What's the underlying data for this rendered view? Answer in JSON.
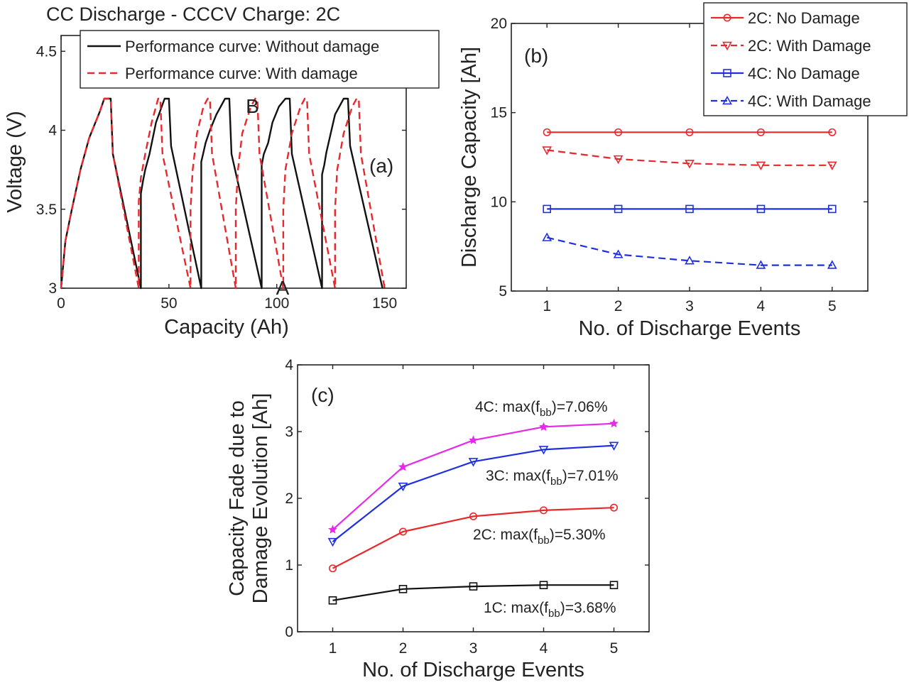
{
  "chart_data": [
    {
      "id": "a",
      "type": "line",
      "title": "CC Discharge - CCCV Charge: 2C",
      "xlabel": "Capacity (Ah)",
      "ylabel": "Voltage (V)",
      "panel_label": "(a)",
      "xlim": [
        0,
        160
      ],
      "ylim": [
        3,
        4.6
      ],
      "xticks": [
        0,
        50,
        100,
        150
      ],
      "yticks": [
        3,
        3.5,
        4,
        4.5
      ],
      "xtick_labels": [
        "0",
        "50",
        "100",
        "150"
      ],
      "ytick_labels": [
        "3",
        "3.5",
        "4",
        "4.5"
      ],
      "legend_position": "top",
      "annotations": [
        {
          "text": "B",
          "x": 83,
          "y": 4.2
        },
        {
          "text": "A",
          "x": 97,
          "y": 3.05
        }
      ],
      "series": [
        {
          "name": "Performance curve: Without damage",
          "color": "#111111",
          "style": "solid",
          "x": [
            0,
            2,
            5,
            9,
            13,
            18,
            20,
            23,
            24,
            37,
            37,
            38,
            39,
            41,
            44,
            48,
            50,
            51,
            65,
            65,
            66,
            67,
            69,
            72,
            76,
            78,
            79,
            93,
            93,
            94,
            96,
            98,
            101,
            104,
            106,
            107,
            121,
            121,
            122,
            123,
            125,
            127,
            131,
            133,
            134,
            149
          ],
          "y": [
            3,
            3.3,
            3.5,
            3.75,
            3.95,
            4.12,
            4.2,
            4.2,
            3.85,
            3,
            3.6,
            3.68,
            3.75,
            3.85,
            4.05,
            4.2,
            4.2,
            3.9,
            3,
            3.8,
            3.86,
            3.92,
            4.0,
            4.1,
            4.2,
            4.2,
            3.85,
            3,
            3.78,
            3.85,
            3.92,
            4.05,
            4.15,
            4.2,
            4.2,
            3.85,
            3,
            3.72,
            3.78,
            3.86,
            3.98,
            4.1,
            4.2,
            4.2,
            3.9,
            3
          ]
        },
        {
          "name": "Performance curve: With damage",
          "color": "#e8282b",
          "style": "dashed",
          "x": [
            0,
            2,
            5,
            9,
            13,
            18,
            20,
            23,
            24,
            36,
            36,
            37,
            39,
            42,
            45,
            46,
            47,
            60,
            60,
            61,
            63,
            66,
            68,
            69,
            70,
            81,
            81,
            82,
            84,
            88,
            90,
            91,
            92,
            103,
            103,
            104,
            107,
            111,
            113,
            114,
            115,
            127,
            127,
            128,
            131,
            135,
            137,
            138,
            139,
            150
          ],
          "y": [
            3,
            3.3,
            3.5,
            3.75,
            3.95,
            4.12,
            4.2,
            4.2,
            3.85,
            3,
            3.55,
            3.7,
            3.85,
            4.05,
            4.2,
            4.2,
            3.85,
            3,
            3.5,
            3.75,
            3.98,
            4.15,
            4.2,
            4.2,
            3.85,
            3,
            3.5,
            3.75,
            3.98,
            4.15,
            4.2,
            4.2,
            3.85,
            3,
            3.5,
            3.75,
            3.98,
            4.15,
            4.2,
            4.2,
            3.85,
            3,
            3.5,
            3.75,
            3.98,
            4.15,
            4.2,
            4.2,
            3.85,
            3
          ]
        }
      ]
    },
    {
      "id": "b",
      "type": "line",
      "title": "",
      "xlabel": "No. of Discharge Events",
      "ylabel": "Discharge Capacity [Ah]",
      "panel_label": "(b)",
      "x": [
        1,
        2,
        3,
        4,
        5
      ],
      "xlim": [
        0.5,
        5.5
      ],
      "ylim": [
        5,
        20
      ],
      "xticks": [
        1,
        2,
        3,
        4,
        5
      ],
      "yticks": [
        5,
        10,
        15,
        20
      ],
      "xtick_labels": [
        "1",
        "2",
        "3",
        "4",
        "5"
      ],
      "ytick_labels": [
        "5",
        "10",
        "15",
        "20"
      ],
      "legend_position": "top-right",
      "series": [
        {
          "name": "2C: No Damage",
          "color": "#e8282b",
          "style": "solid",
          "marker": "circle",
          "values": [
            13.9,
            13.9,
            13.9,
            13.9,
            13.9
          ]
        },
        {
          "name": "2C: With Damage",
          "color": "#e8282b",
          "style": "dashed",
          "marker": "triangle-down",
          "values": [
            12.9,
            12.4,
            12.15,
            12.05,
            12.05
          ]
        },
        {
          "name": "4C: No Damage",
          "color": "#1f2fe0",
          "style": "solid",
          "marker": "square",
          "values": [
            9.6,
            9.6,
            9.6,
            9.6,
            9.6
          ]
        },
        {
          "name": "4C: With Damage",
          "color": "#1f2fe0",
          "style": "dashed",
          "marker": "triangle-up",
          "values": [
            8.0,
            7.05,
            6.7,
            6.45,
            6.45
          ]
        }
      ]
    },
    {
      "id": "c",
      "type": "line",
      "title": "",
      "xlabel": "No. of Discharge Events",
      "ylabel_lines": [
        "Capacity Fade due to",
        "Damage Evolution [Ah]"
      ],
      "panel_label": "(c)",
      "x": [
        1,
        2,
        3,
        4,
        5
      ],
      "xlim": [
        0.5,
        5.5
      ],
      "ylim": [
        0,
        4
      ],
      "xticks": [
        1,
        2,
        3,
        4,
        5
      ],
      "yticks": [
        0,
        1,
        2,
        3,
        4
      ],
      "xtick_labels": [
        "1",
        "2",
        "3",
        "4",
        "5"
      ],
      "ytick_labels": [
        "0",
        "1",
        "2",
        "3",
        "4"
      ],
      "series": [
        {
          "name": "4C",
          "color": "#e52ae8",
          "marker": "star",
          "values": [
            1.53,
            2.47,
            2.87,
            3.07,
            3.12
          ],
          "label": {
            "prefix": "4C: max(f",
            "sub": "bb",
            "suffix": ")=7.06%"
          }
        },
        {
          "name": "3C",
          "color": "#1f2fe0",
          "marker": "triangle-down",
          "values": [
            1.35,
            2.18,
            2.55,
            2.73,
            2.79
          ],
          "label": {
            "prefix": "3C: max(f",
            "sub": "bb",
            "suffix": ")=7.01%"
          }
        },
        {
          "name": "2C",
          "color": "#e8282b",
          "marker": "circle",
          "values": [
            0.95,
            1.5,
            1.73,
            1.82,
            1.86
          ],
          "label": {
            "prefix": "2C: max(f",
            "sub": "bb",
            "suffix": ")=5.30%"
          }
        },
        {
          "name": "1C",
          "color": "#111111",
          "marker": "square",
          "values": [
            0.47,
            0.64,
            0.68,
            0.7,
            0.7
          ],
          "label": {
            "prefix": "1C: max(f",
            "sub": "bb",
            "suffix": ")=3.68%"
          }
        }
      ]
    }
  ]
}
